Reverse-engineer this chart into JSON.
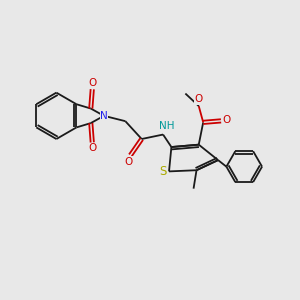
{
  "bg_color": "#e8e8e8",
  "bond_color": "#1a1a1a",
  "N_color": "#2020ee",
  "O_color": "#cc0000",
  "S_color": "#aaaa00",
  "NH_color": "#009999",
  "lw": 1.3,
  "fs": 7.5,
  "xlim": [
    0,
    10
  ],
  "ylim": [
    0,
    10
  ]
}
